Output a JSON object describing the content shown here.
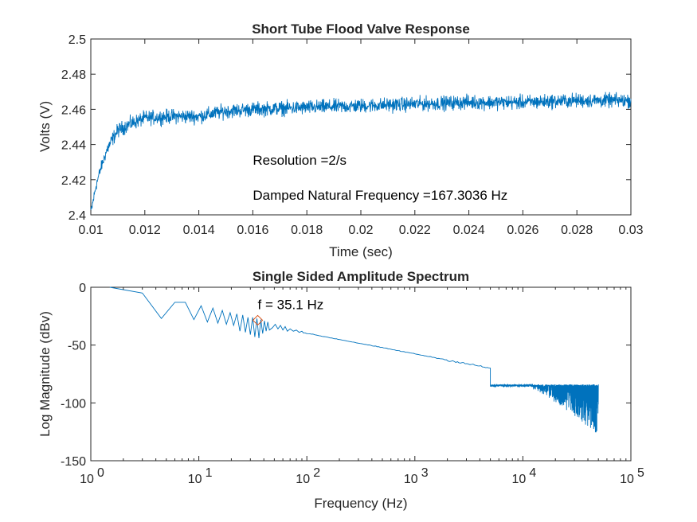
{
  "chart_data": [
    {
      "type": "line",
      "title": "Short Tube Flood Valve Response",
      "xlabel": "Time (sec)",
      "ylabel": "Volts (V)",
      "xlim": [
        0.01,
        0.03
      ],
      "ylim": [
        2.4,
        2.5
      ],
      "xticks": [
        0.01,
        0.012,
        0.014,
        0.016,
        0.018,
        0.02,
        0.022,
        0.024,
        0.026,
        0.028,
        0.03
      ],
      "xtick_labels": [
        "0.01",
        "0.012",
        "0.014",
        "0.016",
        "0.018",
        "0.02",
        "0.022",
        "0.024",
        "0.026",
        "0.028",
        "0.03"
      ],
      "yticks": [
        2.4,
        2.42,
        2.44,
        2.46,
        2.48,
        2.5
      ],
      "ytick_labels": [
        "2.4",
        "2.42",
        "2.44",
        "2.46",
        "2.48",
        "2.5"
      ],
      "grid": false,
      "line_color": "#0072BD",
      "series_envelope": {
        "x": [
          0.01,
          0.0102,
          0.0104,
          0.0106,
          0.0108,
          0.011,
          0.0115,
          0.012,
          0.013,
          0.014,
          0.015,
          0.016,
          0.018,
          0.02,
          0.022,
          0.024,
          0.026,
          0.028,
          0.03
        ],
        "mean": [
          2.401,
          2.417,
          2.428,
          2.437,
          2.443,
          2.448,
          2.452,
          2.455,
          2.456,
          2.456,
          2.459,
          2.46,
          2.461,
          2.462,
          2.463,
          2.464,
          2.464,
          2.465,
          2.465
        ],
        "noise_amplitude": 0.006
      },
      "annotations": [
        {
          "text": "Resolution =2/s",
          "x": 0.016,
          "y": 2.4285
        },
        {
          "text": "Damped Natural Frequency =167.3036 Hz",
          "x": 0.016,
          "y": 2.4087
        }
      ]
    },
    {
      "type": "line",
      "title": "Single Sided Amplitude Spectrum",
      "xlabel": "Frequency (Hz)",
      "ylabel": "Log Magnitude (dBv)",
      "xscale": "log",
      "xlim": [
        1,
        100000
      ],
      "ylim": [
        -150,
        0
      ],
      "xticks": [
        1,
        10,
        100,
        1000,
        10000,
        100000
      ],
      "xtick_labels": [
        {
          "base": "10",
          "exp": "0"
        },
        {
          "base": "10",
          "exp": "1"
        },
        {
          "base": "10",
          "exp": "2"
        },
        {
          "base": "10",
          "exp": "3"
        },
        {
          "base": "10",
          "exp": "4"
        },
        {
          "base": "10",
          "exp": "5"
        }
      ],
      "yticks": [
        -150,
        -100,
        -50,
        0
      ],
      "ytick_labels": [
        "-150",
        "-100",
        "-50",
        "0"
      ],
      "grid": false,
      "line_color": "#0072BD",
      "series_points": {
        "x": [
          1.5,
          3,
          4.5,
          6,
          7.5,
          9,
          10.5,
          12,
          13.5,
          15,
          16.5,
          18,
          19.5,
          21,
          22.5,
          24,
          25.5,
          27,
          28.5,
          30,
          31.5,
          33,
          34.5,
          36,
          37.5,
          39,
          40.5,
          42,
          43.5,
          45,
          48,
          51,
          54,
          57,
          60,
          63,
          66,
          70,
          75,
          80,
          85,
          90
        ],
        "y": [
          0,
          -5,
          -27,
          -13,
          -13,
          -28,
          -16,
          -30,
          -18,
          -31,
          -20,
          -32,
          -22,
          -33,
          -23,
          -38,
          -24,
          -39,
          -26,
          -41,
          -26,
          -43,
          -27,
          -44,
          -28,
          -40,
          -29,
          -38,
          -30,
          -37,
          -35,
          -32,
          -36,
          -33,
          -37,
          -34,
          -38,
          -36,
          -38,
          -37,
          -39,
          -38
        ]
      },
      "trend": {
        "x": [
          90,
          5000,
          20000,
          50000
        ],
        "y": [
          -39,
          -70,
          -82,
          -92
        ]
      },
      "noise_band": {
        "x_start": 5000,
        "x_end": 50000,
        "upper": -84,
        "lower_start": -75,
        "lower_end": -128
      },
      "marker": {
        "x": 35.1,
        "y": -28.5,
        "shape": "diamond",
        "color": "#D95319",
        "label": "f = 35.1 Hz"
      }
    }
  ]
}
